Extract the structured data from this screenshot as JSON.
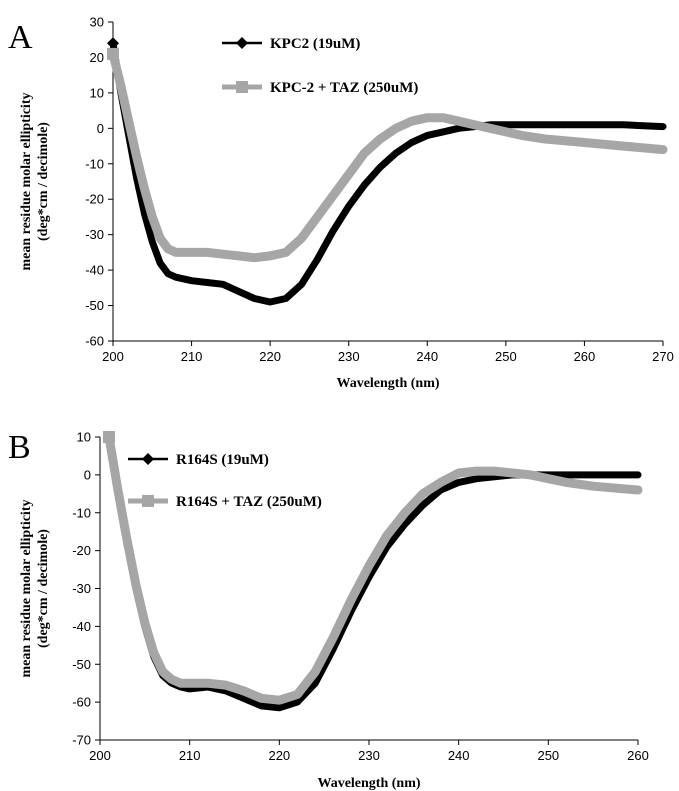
{
  "chart_data": [
    {
      "type": "line",
      "panel_label": "A",
      "xlabel": "Wavelength (nm)",
      "ylabel": [
        "mean residue molar ellipticity",
        "(deg*cm / decimole)"
      ],
      "xlim": [
        200,
        270
      ],
      "ylim": [
        -60,
        30
      ],
      "xticks": [
        200,
        210,
        220,
        230,
        240,
        250,
        260,
        270
      ],
      "yticks": [
        30,
        20,
        10,
        0,
        -10,
        -20,
        -30,
        -40,
        -50,
        -60
      ],
      "legend_position": "top",
      "grid": false,
      "series": [
        {
          "name": "KPC2 (19uM)",
          "color": "#000000",
          "marker": "diamond",
          "x": [
            200,
            201,
            202,
            203,
            204,
            205,
            206,
            207,
            208,
            210,
            212,
            214,
            216,
            218,
            220,
            222,
            224,
            226,
            228,
            230,
            232,
            234,
            236,
            238,
            240,
            242,
            244,
            246,
            248,
            250,
            255,
            260,
            265,
            270
          ],
          "y": [
            24,
            10,
            -2,
            -14,
            -24,
            -32,
            -38,
            -41,
            -42,
            -43,
            -43.5,
            -44,
            -46,
            -48,
            -49,
            -48,
            -44,
            -37,
            -29,
            -22,
            -16,
            -11,
            -7,
            -4,
            -2,
            -1,
            0,
            0.5,
            1,
            1,
            1,
            1,
            1,
            0.5
          ]
        },
        {
          "name": "KPC-2 + TAZ (250uM)",
          "color": "#a6a6a6",
          "marker": "square",
          "x": [
            200,
            201,
            202,
            203,
            204,
            205,
            206,
            207,
            208,
            210,
            212,
            214,
            216,
            218,
            220,
            222,
            224,
            226,
            228,
            230,
            232,
            234,
            236,
            238,
            240,
            242,
            244,
            246,
            248,
            250,
            252,
            255,
            260,
            265,
            270
          ],
          "y": [
            21,
            12,
            2,
            -8,
            -17,
            -25,
            -31,
            -34,
            -35,
            -35,
            -35,
            -35.5,
            -36,
            -36.5,
            -36,
            -35,
            -31,
            -25,
            -19,
            -13,
            -7,
            -3,
            0,
            2,
            3,
            3,
            2,
            1,
            0,
            -1,
            -2,
            -3,
            -4,
            -5,
            -6
          ]
        }
      ]
    },
    {
      "type": "line",
      "panel_label": "B",
      "xlabel": "Wavelength (nm)",
      "ylabel": [
        "mean residue molar ellipticity",
        "(deg*cm / decimole)"
      ],
      "xlim": [
        200,
        260
      ],
      "ylim": [
        -70,
        10
      ],
      "xticks": [
        200,
        210,
        220,
        230,
        240,
        250,
        260
      ],
      "yticks": [
        10,
        0,
        -10,
        -20,
        -30,
        -40,
        -50,
        -60,
        -70
      ],
      "legend_position": "top",
      "grid": false,
      "series": [
        {
          "name": "R164S (19uM)",
          "color": "#000000",
          "marker": "diamond",
          "x": [
            201,
            202,
            203,
            204,
            205,
            206,
            207,
            208,
            209,
            210,
            212,
            214,
            216,
            218,
            220,
            222,
            224,
            226,
            228,
            230,
            232,
            234,
            236,
            238,
            240,
            242,
            244,
            246,
            248,
            250,
            255,
            260
          ],
          "y": [
            10,
            -5,
            -18,
            -30,
            -40,
            -48,
            -53,
            -55,
            -56,
            -56.5,
            -56,
            -57,
            -59,
            -61,
            -61.5,
            -60,
            -55,
            -46,
            -36,
            -27,
            -19,
            -13,
            -8,
            -4,
            -2,
            -1,
            -0.5,
            0,
            0,
            0,
            0,
            0
          ]
        },
        {
          "name": "R164S + TAZ (250uM)",
          "color": "#a6a6a6",
          "marker": "square",
          "x": [
            201,
            202,
            203,
            204,
            205,
            206,
            207,
            208,
            209,
            210,
            212,
            214,
            216,
            218,
            220,
            222,
            224,
            226,
            228,
            230,
            232,
            234,
            236,
            238,
            240,
            242,
            244,
            246,
            248,
            250,
            252,
            255,
            260
          ],
          "y": [
            10,
            -4,
            -17,
            -29,
            -39,
            -47,
            -52,
            -54,
            -55,
            -55,
            -55,
            -55.5,
            -57,
            -59,
            -59.5,
            -58,
            -52,
            -43,
            -33,
            -24,
            -16,
            -10,
            -5,
            -2,
            0.5,
            1,
            1,
            0.5,
            0,
            -1,
            -2,
            -3,
            -4
          ]
        }
      ]
    }
  ]
}
